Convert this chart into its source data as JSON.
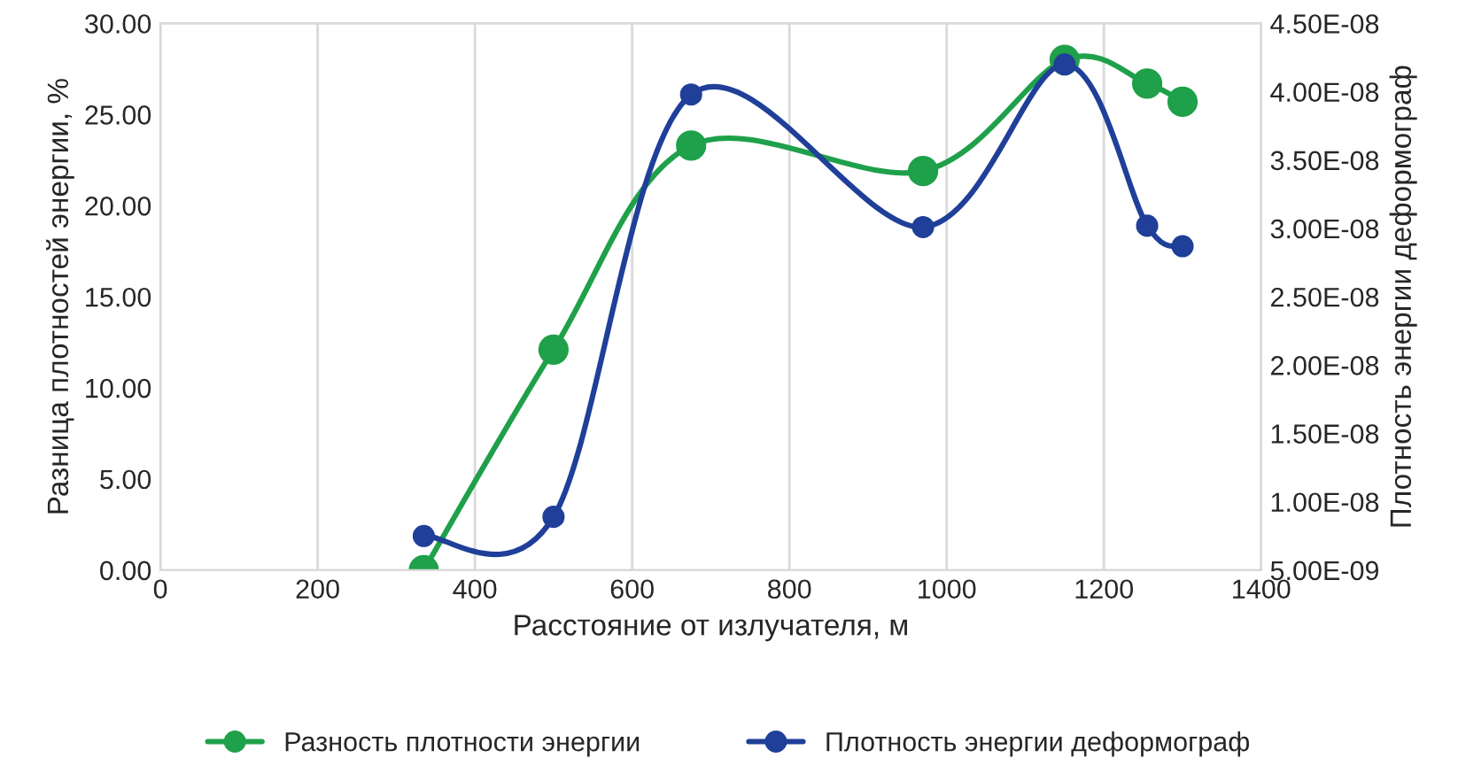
{
  "chart_data": {
    "type": "line",
    "xlabel": "Расстояние от излучателя, м",
    "ylabel": "Разница плотностей энергии, %",
    "y2label": "Плотность энергии деформограф",
    "xlim": [
      0,
      1400
    ],
    "xticks": [
      0,
      200,
      400,
      600,
      800,
      1000,
      1200,
      1400
    ],
    "ylim": [
      0,
      30
    ],
    "yticks": [
      {
        "value": 0,
        "label": "0.00"
      },
      {
        "value": 5,
        "label": "5.00"
      },
      {
        "value": 10,
        "label": "10.00"
      },
      {
        "value": 15,
        "label": "15.00"
      },
      {
        "value": 20,
        "label": "20.00"
      },
      {
        "value": 25,
        "label": "25.00"
      },
      {
        "value": 30,
        "label": "30.00"
      }
    ],
    "y2lim": [
      5e-09,
      4.5e-08
    ],
    "y2ticks": [
      {
        "value": 5e-09,
        "label": "5.00E-09"
      },
      {
        "value": 1e-08,
        "label": "1.00E-08"
      },
      {
        "value": 1.5e-08,
        "label": "1.50E-08"
      },
      {
        "value": 2e-08,
        "label": "2.00E-08"
      },
      {
        "value": 2.5e-08,
        "label": "2.50E-08"
      },
      {
        "value": 3e-08,
        "label": "3.00E-08"
      },
      {
        "value": 3.5e-08,
        "label": "3.50E-08"
      },
      {
        "value": 4e-08,
        "label": "4.00E-08"
      },
      {
        "value": 4.5e-08,
        "label": "4.50E-08"
      }
    ],
    "x": [
      335,
      500,
      675,
      970,
      1150,
      1255,
      1300
    ],
    "series": [
      {
        "name": "Разность плотности энергии",
        "color": "#1fa04a",
        "values": [
          0.0,
          12.1,
          23.3,
          21.9,
          28.0,
          26.7,
          25.7
        ]
      },
      {
        "name": "Плотность энергии деформограф",
        "color": "#1f3f99",
        "axis": "y2",
        "values": [
          7.5e-09,
          8.9e-09,
          3.98e-08,
          3.01e-08,
          4.2e-08,
          3.02e-08,
          2.87e-08
        ]
      }
    ],
    "grid": "x",
    "legend": "bottom",
    "marker": "circle",
    "line_style": "solid"
  }
}
